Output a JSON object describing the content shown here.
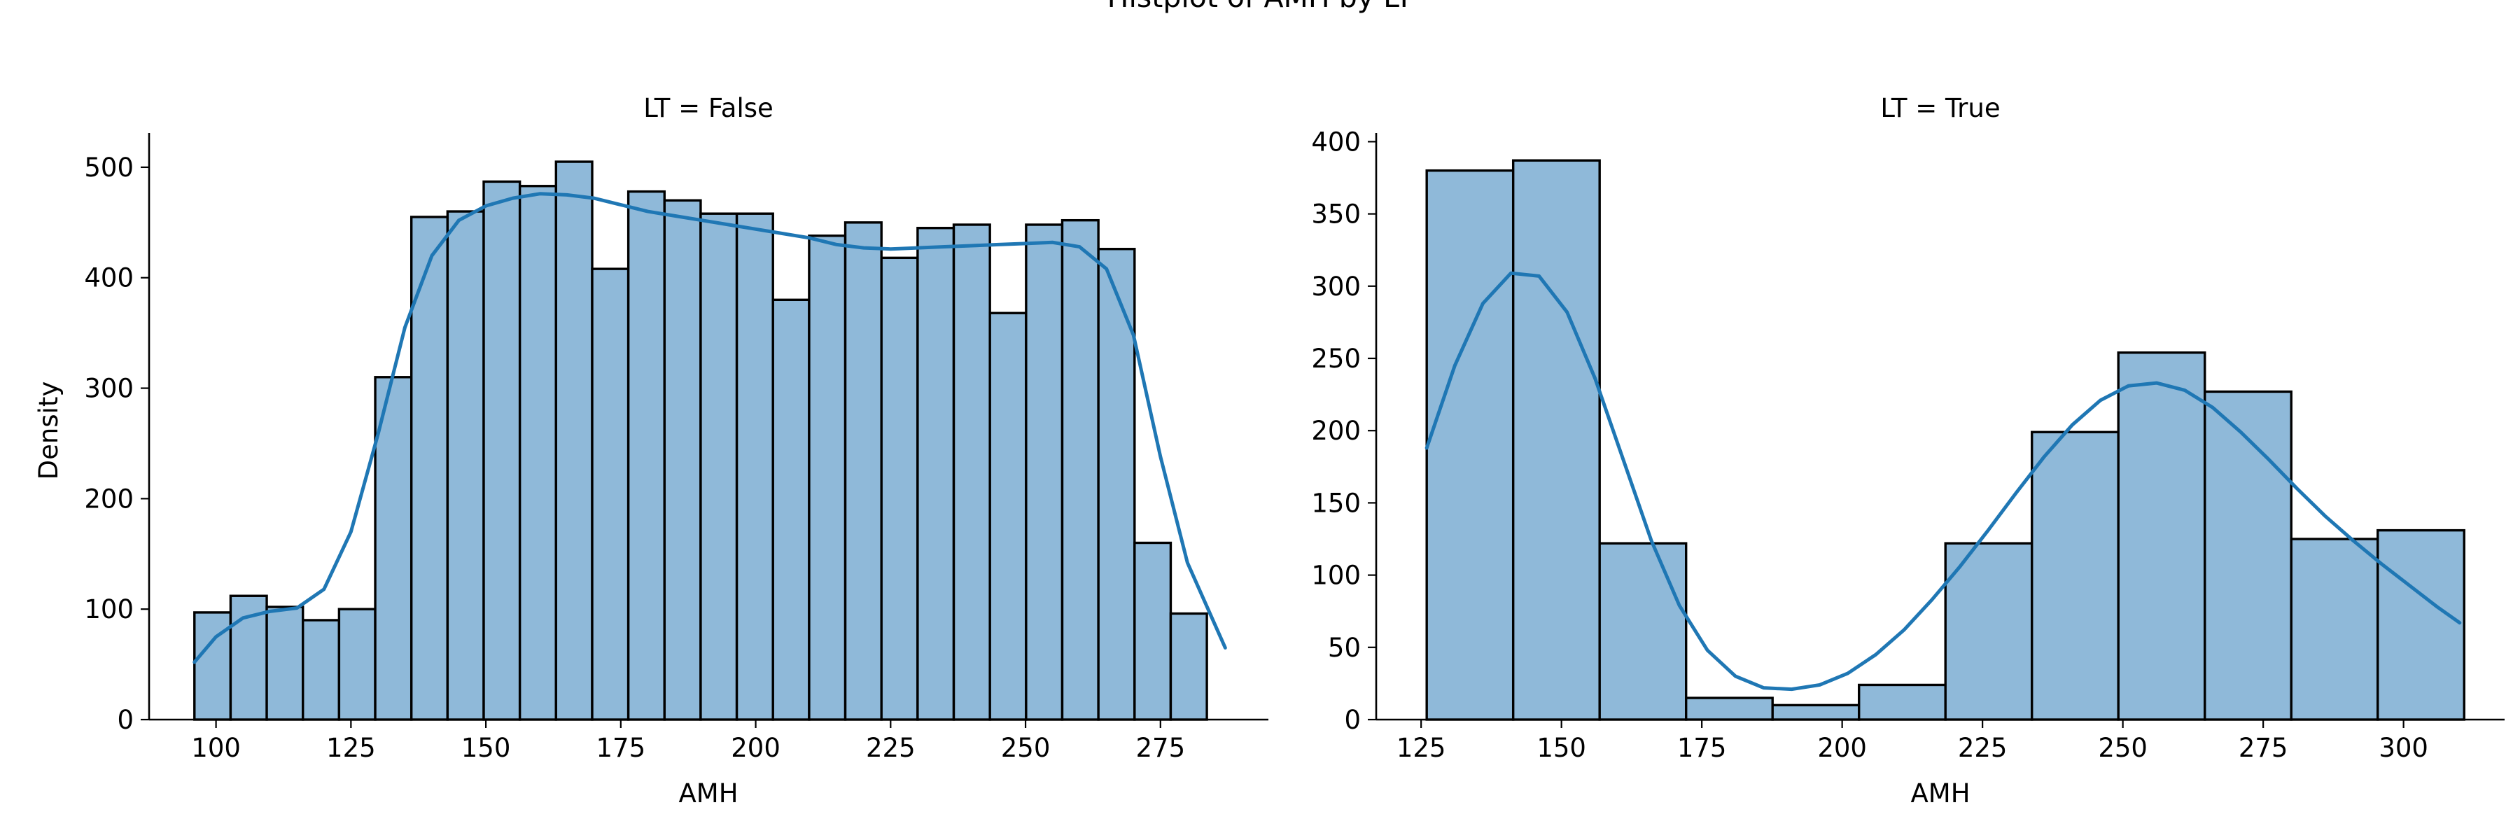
{
  "figure_title": "Histplot of AMH by LT",
  "colors": {
    "bar_fill": "#8fb9d9",
    "bar_edge": "#000000",
    "kde_line": "#1f77b4"
  },
  "chart_data": [
    {
      "type": "bar",
      "title": "LT = False",
      "xlabel": "AMH",
      "ylabel": "Density",
      "xlim": [
        87.6,
        295
      ],
      "ylim": [
        0,
        531
      ],
      "xticks": [
        100,
        125,
        150,
        175,
        200,
        225,
        250,
        275
      ],
      "yticks": [
        0,
        100,
        200,
        300,
        400,
        500
      ],
      "bin_start": 96,
      "bin_width": 6.7,
      "values": [
        97,
        112,
        102,
        90,
        100,
        310,
        455,
        460,
        487,
        483,
        505,
        408,
        478,
        470,
        458,
        458,
        380,
        438,
        450,
        418,
        445,
        448,
        368,
        448,
        452,
        426,
        160,
        96
      ],
      "kde": {
        "x": [
          96,
          100,
          105,
          110,
          115,
          120,
          125,
          130,
          135,
          140,
          145,
          150,
          155,
          160,
          165,
          170,
          175,
          180,
          185,
          190,
          195,
          200,
          205,
          210,
          215,
          220,
          225,
          230,
          235,
          240,
          245,
          250,
          255,
          260,
          265,
          270,
          275,
          280,
          287
        ],
        "y": [
          52,
          75,
          92,
          98,
          101,
          118,
          170,
          258,
          355,
          420,
          452,
          465,
          472,
          476,
          475,
          472,
          466,
          460,
          456,
          452,
          448,
          444,
          440,
          436,
          430,
          427,
          426,
          427,
          428,
          429,
          430,
          431,
          432,
          428,
          408,
          348,
          238,
          142,
          65
        ]
      }
    },
    {
      "type": "bar",
      "title": "LT = True",
      "xlabel": "AMH",
      "ylabel": "",
      "xlim": [
        117,
        318
      ],
      "ylim": [
        0,
        406
      ],
      "xticks": [
        125,
        150,
        175,
        200,
        225,
        250,
        275,
        300
      ],
      "yticks": [
        0,
        50,
        100,
        150,
        200,
        250,
        300,
        350,
        400
      ],
      "bin_start": 126,
      "bin_width": 15.4,
      "values": [
        380,
        387,
        122,
        15,
        10,
        24,
        122,
        199,
        254,
        227,
        125,
        131
      ],
      "kde": {
        "x": [
          126,
          131,
          136,
          141,
          146,
          151,
          156,
          161,
          166,
          171,
          176,
          181,
          186,
          191,
          196,
          201,
          206,
          211,
          216,
          221,
          226,
          231,
          236,
          241,
          246,
          251,
          256,
          261,
          266,
          271,
          276,
          281,
          286,
          291,
          296,
          301,
          306,
          310
        ],
        "y": [
          188,
          245,
          288,
          309,
          307,
          282,
          236,
          180,
          124,
          79,
          48,
          30,
          22,
          21,
          24,
          32,
          45,
          62,
          83,
          106,
          131,
          157,
          182,
          204,
          221,
          231,
          233,
          228,
          216,
          199,
          180,
          160,
          141,
          124,
          108,
          93,
          78,
          67
        ]
      }
    }
  ]
}
